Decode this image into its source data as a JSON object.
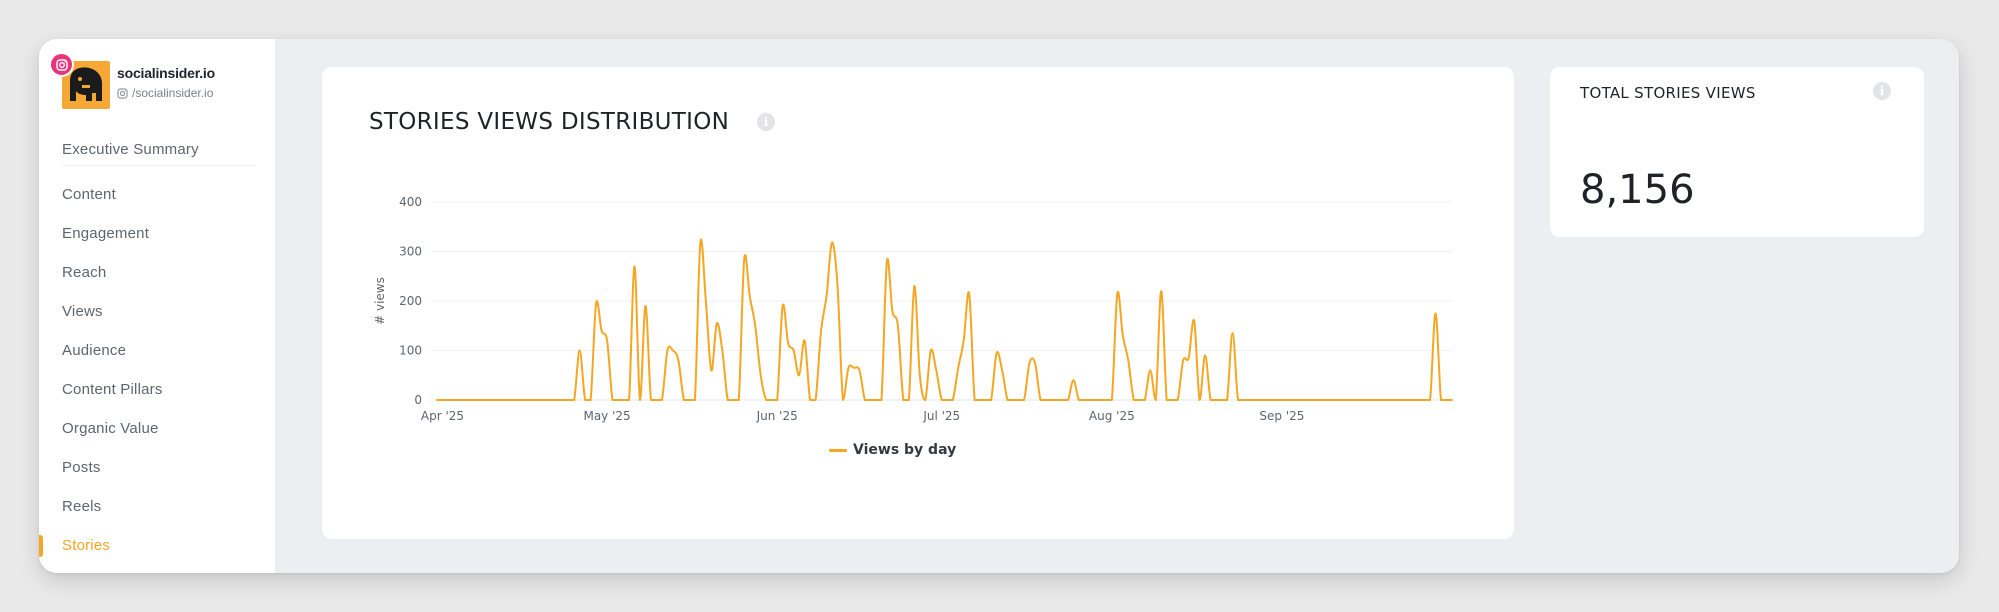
{
  "profile": {
    "name": "socialinsider.io",
    "handle": "/socialinsider.io"
  },
  "sidebar": {
    "items": [
      {
        "label": "Executive Summary"
      },
      {
        "label": "Content"
      },
      {
        "label": "Engagement"
      },
      {
        "label": "Reach"
      },
      {
        "label": "Views"
      },
      {
        "label": "Audience"
      },
      {
        "label": "Content Pillars"
      },
      {
        "label": "Organic Value"
      },
      {
        "label": "Posts"
      },
      {
        "label": "Reels"
      },
      {
        "label": "Stories"
      }
    ],
    "active": "Stories"
  },
  "main_card": {
    "title": "STORIES VIEWS DISTRIBUTION",
    "info": "i"
  },
  "side_card": {
    "title": "TOTAL STORIES VIEWS",
    "value": "8,156",
    "info": "i"
  },
  "colors": {
    "accent": "#f5a623",
    "instagram": "#e6357a"
  },
  "chart_data": {
    "type": "line",
    "ylabel": "# views",
    "xlabel": "",
    "ylim": [
      0,
      400
    ],
    "yticks": [
      0,
      100,
      200,
      300,
      400
    ],
    "xticks": [
      "Apr '25",
      "May '25",
      "Jun '25",
      "Jul '25",
      "Aug '25",
      "Sep '25"
    ],
    "legend": "bottom",
    "series": [
      {
        "name": "Views by day",
        "points": [
          [
            "2025-03-31",
            0
          ],
          [
            "2025-04-25",
            0
          ],
          [
            "2025-04-26",
            100
          ],
          [
            "2025-04-27",
            0
          ],
          [
            "2025-04-28",
            0
          ],
          [
            "2025-04-29",
            195
          ],
          [
            "2025-04-30",
            140
          ],
          [
            "2025-05-01",
            120
          ],
          [
            "2025-05-02",
            0
          ],
          [
            "2025-05-05",
            0
          ],
          [
            "2025-05-06",
            270
          ],
          [
            "2025-05-07",
            0
          ],
          [
            "2025-05-08",
            190
          ],
          [
            "2025-05-09",
            0
          ],
          [
            "2025-05-11",
            0
          ],
          [
            "2025-05-12",
            100
          ],
          [
            "2025-05-13",
            100
          ],
          [
            "2025-05-14",
            80
          ],
          [
            "2025-05-15",
            0
          ],
          [
            "2025-05-17",
            0
          ],
          [
            "2025-05-18",
            318
          ],
          [
            "2025-05-19",
            200
          ],
          [
            "2025-05-20",
            60
          ],
          [
            "2025-05-21",
            155
          ],
          [
            "2025-05-22",
            100
          ],
          [
            "2025-05-23",
            0
          ],
          [
            "2025-05-25",
            0
          ],
          [
            "2025-05-26",
            285
          ],
          [
            "2025-05-27",
            210
          ],
          [
            "2025-05-28",
            150
          ],
          [
            "2025-05-29",
            50
          ],
          [
            "2025-05-30",
            0
          ],
          [
            "2025-06-01",
            0
          ],
          [
            "2025-06-02",
            190
          ],
          [
            "2025-06-03",
            115
          ],
          [
            "2025-06-04",
            100
          ],
          [
            "2025-06-05",
            50
          ],
          [
            "2025-06-06",
            120
          ],
          [
            "2025-06-07",
            0
          ],
          [
            "2025-06-08",
            0
          ],
          [
            "2025-06-09",
            140
          ],
          [
            "2025-06-10",
            210
          ],
          [
            "2025-06-11",
            318
          ],
          [
            "2025-06-12",
            230
          ],
          [
            "2025-06-13",
            0
          ],
          [
            "2025-06-14",
            65
          ],
          [
            "2025-06-15",
            65
          ],
          [
            "2025-06-16",
            60
          ],
          [
            "2025-06-17",
            0
          ],
          [
            "2025-06-20",
            0
          ],
          [
            "2025-06-21",
            280
          ],
          [
            "2025-06-22",
            180
          ],
          [
            "2025-06-23",
            150
          ],
          [
            "2025-06-24",
            0
          ],
          [
            "2025-06-25",
            0
          ],
          [
            "2025-06-26",
            230
          ],
          [
            "2025-06-27",
            50
          ],
          [
            "2025-06-28",
            0
          ],
          [
            "2025-06-29",
            100
          ],
          [
            "2025-06-30",
            60
          ],
          [
            "2025-07-01",
            0
          ],
          [
            "2025-07-03",
            0
          ],
          [
            "2025-07-04",
            65
          ],
          [
            "2025-07-05",
            120
          ],
          [
            "2025-07-06",
            215
          ],
          [
            "2025-07-07",
            0
          ],
          [
            "2025-07-10",
            0
          ],
          [
            "2025-07-11",
            95
          ],
          [
            "2025-07-12",
            60
          ],
          [
            "2025-07-13",
            0
          ],
          [
            "2025-07-16",
            0
          ],
          [
            "2025-07-17",
            75
          ],
          [
            "2025-07-18",
            75
          ],
          [
            "2025-07-19",
            0
          ],
          [
            "2025-07-24",
            0
          ],
          [
            "2025-07-25",
            40
          ],
          [
            "2025-07-26",
            0
          ],
          [
            "2025-08-01",
            0
          ],
          [
            "2025-08-02",
            215
          ],
          [
            "2025-08-03",
            130
          ],
          [
            "2025-08-04",
            80
          ],
          [
            "2025-08-05",
            0
          ],
          [
            "2025-08-07",
            0
          ],
          [
            "2025-08-08",
            60
          ],
          [
            "2025-08-09",
            0
          ],
          [
            "2025-08-10",
            220
          ],
          [
            "2025-08-11",
            0
          ],
          [
            "2025-08-13",
            0
          ],
          [
            "2025-08-14",
            80
          ],
          [
            "2025-08-15",
            85
          ],
          [
            "2025-08-16",
            160
          ],
          [
            "2025-08-17",
            0
          ],
          [
            "2025-08-18",
            90
          ],
          [
            "2025-08-19",
            0
          ],
          [
            "2025-08-22",
            0
          ],
          [
            "2025-08-23",
            135
          ],
          [
            "2025-08-24",
            0
          ],
          [
            "2025-09-28",
            0
          ],
          [
            "2025-09-29",
            175
          ],
          [
            "2025-09-30",
            0
          ],
          [
            "2025-10-02",
            0
          ]
        ]
      }
    ]
  }
}
